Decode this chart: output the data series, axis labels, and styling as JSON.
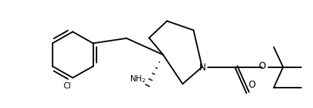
{
  "background_color": "#ffffff",
  "line_color": "#000000",
  "lw": 1.3,
  "fs": 7.5,
  "figsize": [
    3.99,
    1.38
  ],
  "dpi": 100,
  "xlim": [
    0,
    399
  ],
  "ylim": [
    0,
    138
  ]
}
